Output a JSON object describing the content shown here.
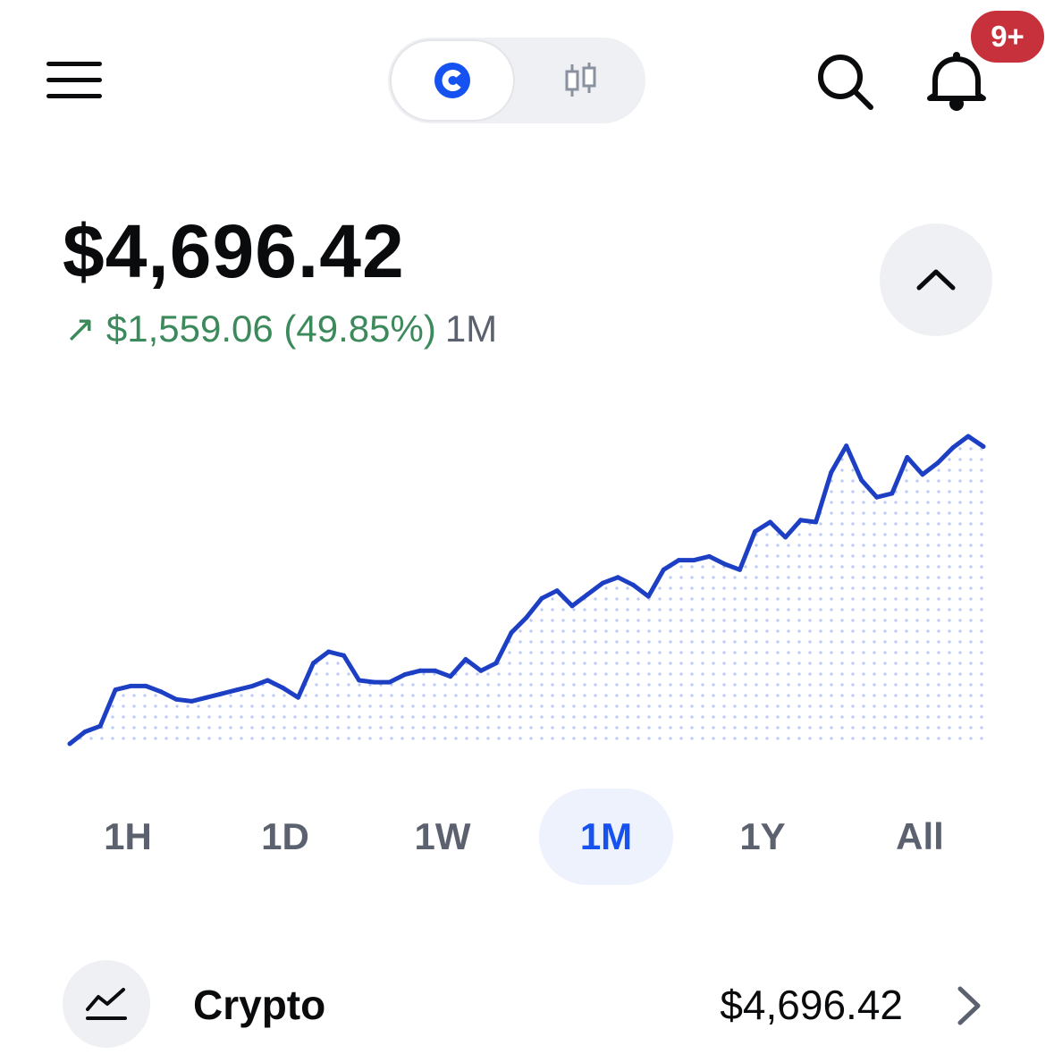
{
  "header": {
    "menu_icon": "hamburger-icon",
    "toggle": [
      {
        "icon": "coinbase-logo-icon",
        "active": true
      },
      {
        "icon": "candlestick-icon",
        "active": false
      }
    ],
    "search_icon": "search-icon",
    "bell_icon": "bell-icon",
    "notification_badge": "9+"
  },
  "portfolio": {
    "balance": "$4,696.42",
    "change_arrow": "↗",
    "change_amount": "$1,559.06 (49.85%)",
    "change_period": "1M",
    "collapse_icon": "chevron-up-icon"
  },
  "colors": {
    "accent": "#1652f0",
    "line": "#1d3fc4",
    "positive": "#3c8a5b",
    "badge": "#c7313b",
    "muted": "#5b616e"
  },
  "chart_data": {
    "type": "area",
    "x": [
      0,
      1,
      2,
      3,
      4,
      5,
      6,
      7,
      8,
      9,
      10,
      11,
      12,
      13,
      14,
      15,
      16,
      17,
      18,
      19,
      20,
      21,
      22,
      23,
      24,
      25,
      26,
      27,
      28,
      29,
      30,
      31,
      32,
      33,
      34,
      35,
      36,
      37,
      38,
      39,
      40,
      41,
      42,
      43,
      44,
      45,
      46,
      47,
      48,
      49,
      50,
      51,
      52,
      53,
      54,
      55,
      56,
      57,
      58,
      59,
      60
    ],
    "values": [
      3137,
      3200,
      3230,
      3420,
      3440,
      3440,
      3410,
      3370,
      3360,
      3380,
      3400,
      3420,
      3440,
      3470,
      3430,
      3380,
      3560,
      3620,
      3600,
      3470,
      3460,
      3460,
      3500,
      3520,
      3520,
      3490,
      3580,
      3520,
      3560,
      3720,
      3800,
      3900,
      3940,
      3860,
      3920,
      3980,
      4010,
      3970,
      3910,
      4050,
      4100,
      4100,
      4120,
      4080,
      4050,
      4250,
      4300,
      4220,
      4310,
      4300,
      4560,
      4700,
      4520,
      4430,
      4450,
      4640,
      4550,
      4610,
      4690,
      4750,
      4696
    ],
    "fill": "dotted",
    "grid": false
  },
  "ranges": {
    "items": [
      "1H",
      "1D",
      "1W",
      "1M",
      "1Y",
      "All"
    ],
    "active": "1M"
  },
  "assets": {
    "crypto": {
      "icon": "chart-line-icon",
      "label": "Crypto",
      "value": "$4,696.42",
      "chevron_icon": "chevron-right-icon"
    }
  }
}
